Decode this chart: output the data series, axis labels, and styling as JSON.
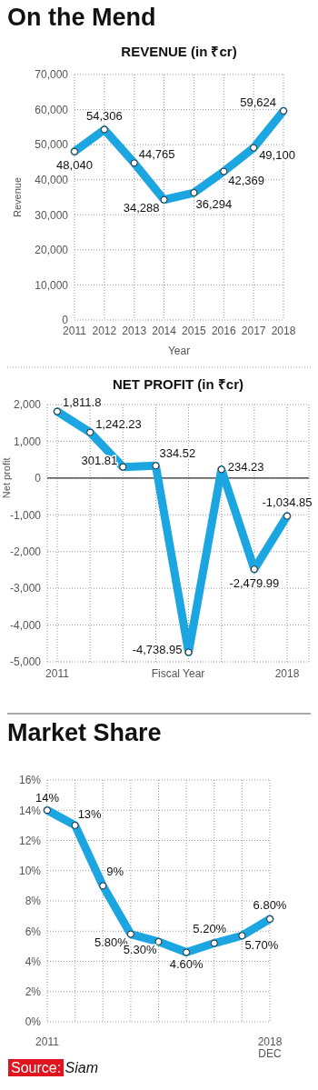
{
  "chart_data": [
    {
      "type": "line",
      "title": "On the Mend",
      "subtitle": "REVENUE (in ₹cr)",
      "xlabel": "Year",
      "ylabel": "Revenue",
      "categories": [
        "2011",
        "2012",
        "2013",
        "2014",
        "2015",
        "2016",
        "2017",
        "2018"
      ],
      "series": [
        {
          "color": "#1ba6e2",
          "values": [
            48040,
            54306,
            44765,
            34288,
            36294,
            42369,
            49100,
            59624
          ]
        }
      ],
      "ylim": [
        0,
        70000
      ],
      "yticks": [
        {
          "value": 0,
          "label": "0"
        },
        {
          "value": 10000,
          "label": "10,000"
        },
        {
          "value": 20000,
          "label": "20,000"
        },
        {
          "value": 30000,
          "label": "30,000"
        },
        {
          "value": 40000,
          "label": "40,000"
        },
        {
          "value": 50000,
          "label": "50,000"
        },
        {
          "value": 60000,
          "label": "60,000"
        },
        {
          "value": 70000,
          "label": "70,000"
        }
      ],
      "grid": true,
      "marker": "circle",
      "value_labels": [
        "48,040",
        "54,306",
        "44,765",
        "34,288",
        "36,294",
        "42,369",
        "49,100",
        "59,624"
      ]
    },
    {
      "type": "line",
      "title": "NET PROFIT (in ₹cr)",
      "xlabel": "Fiscal Year",
      "ylabel": "Net profit",
      "categories": [
        "2011",
        null,
        null,
        null,
        null,
        null,
        null,
        "2018"
      ],
      "series": [
        {
          "color": "#1ba6e2",
          "values": [
            1811.8,
            1242.23,
            301.81,
            334.52,
            -4738.95,
            234.23,
            -2479.99,
            -1034.85
          ]
        }
      ],
      "ylim": [
        -5000,
        2000
      ],
      "yticks": [
        {
          "value": -5000,
          "label": "-5,000"
        },
        {
          "value": -4000,
          "label": "-4,000"
        },
        {
          "value": -3000,
          "label": "-3,000"
        },
        {
          "value": -2000,
          "label": "-2,000"
        },
        {
          "value": -1000,
          "label": "-1,000"
        },
        {
          "value": 0,
          "label": "0"
        },
        {
          "value": 1000,
          "label": "1,000"
        },
        {
          "value": 2000,
          "label": "2,000"
        }
      ],
      "grid": true,
      "marker": "circle",
      "value_labels": [
        "1,811.8",
        "1,242.23",
        "301.81",
        "334.52",
        "-4,738.95",
        "234.23",
        "-2,479.99",
        "-1,034.85"
      ],
      "ref_lines": [
        {
          "axis": "y",
          "value": 0,
          "color": "#333333"
        }
      ]
    },
    {
      "type": "line",
      "title": "Market Share",
      "categories": [
        "2011",
        null,
        null,
        null,
        null,
        null,
        null,
        null,
        "2018\nDEC"
      ],
      "series": [
        {
          "color": "#1ba6e2",
          "values": [
            14,
            13,
            9,
            5.8,
            5.3,
            4.6,
            5.2,
            5.7,
            6.8
          ]
        }
      ],
      "ylim": [
        0,
        16
      ],
      "yticks": [
        {
          "value": 0,
          "label": "0%"
        },
        {
          "value": 2,
          "label": "2%"
        },
        {
          "value": 4,
          "label": "4%"
        },
        {
          "value": 6,
          "label": "6%"
        },
        {
          "value": 8,
          "label": "8%"
        },
        {
          "value": 10,
          "label": "10%"
        },
        {
          "value": 12,
          "label": "12%"
        },
        {
          "value": 14,
          "label": "14%"
        },
        {
          "value": 16,
          "label": "16%"
        }
      ],
      "grid": true,
      "marker": "circle",
      "value_labels": [
        "14%",
        "13%",
        "9%",
        "5.80%",
        "5.30%",
        "4.60%",
        "5.20%",
        "5.70%",
        "6.80%"
      ],
      "annotations": [
        "Source: Siam"
      ]
    }
  ]
}
